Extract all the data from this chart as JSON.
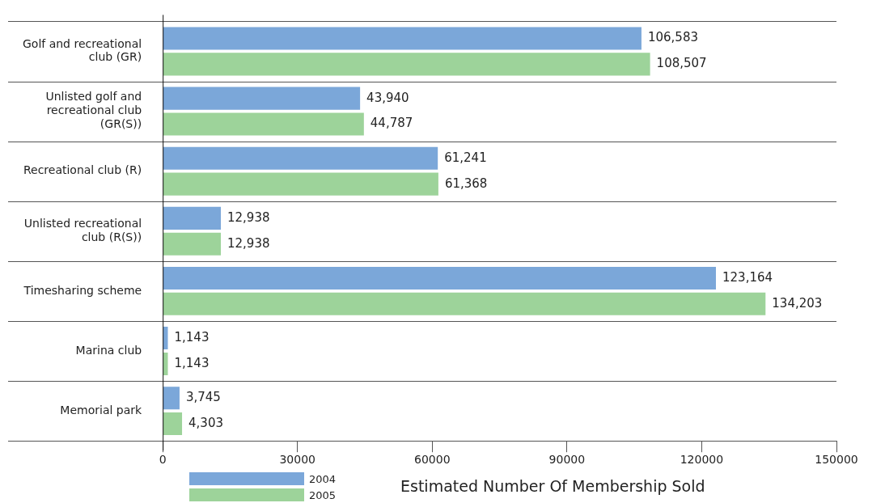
{
  "chart_data": {
    "type": "bar",
    "orientation": "horizontal",
    "xlabel": "Estimated Number Of Membership Sold",
    "categories": [
      "Golf and recreational club (GR)",
      "Unlisted golf and recreational club (GR(S))",
      "Recreational club (R)",
      "Unlisted recreational club (R(S))",
      "Timesharing scheme",
      "Marina club",
      "Memorial park"
    ],
    "series": [
      {
        "name": "2004",
        "color": "#7ba7d9",
        "values": [
          106583,
          43940,
          61241,
          12938,
          123164,
          1143,
          3745
        ],
        "value_labels": [
          "106,583",
          "43,940",
          "61,241",
          "12,938",
          "123,164",
          "1,143",
          "3,745"
        ]
      },
      {
        "name": "2005",
        "color": "#9dd39a",
        "values": [
          108507,
          44787,
          61368,
          12938,
          134203,
          1143,
          4303
        ],
        "value_labels": [
          "108,507",
          "44,787",
          "61,368",
          "12,938",
          "134,203",
          "1,143",
          "4,303"
        ]
      }
    ],
    "xlim": [
      0,
      150000
    ],
    "xticks": [
      0,
      30000,
      60000,
      90000,
      120000,
      150000
    ],
    "grid": "y",
    "legend": "bottom left"
  }
}
